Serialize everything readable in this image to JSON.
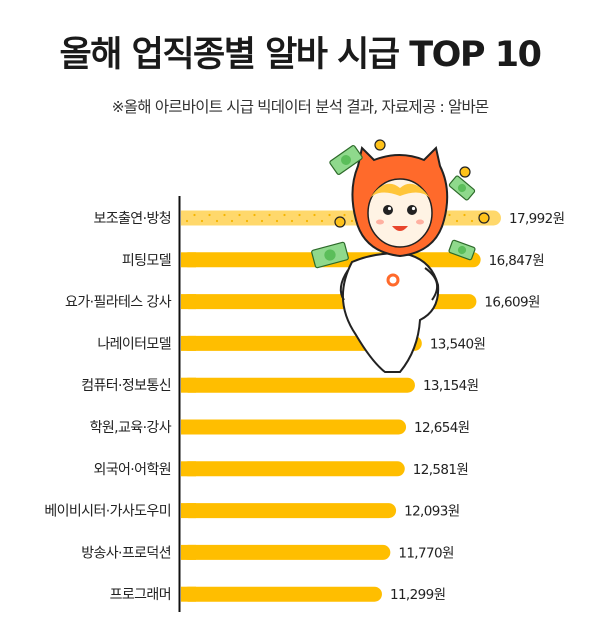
{
  "header": {
    "title": "올해 업직종별 알바 시급 TOP 10",
    "subtitle": "※올해 아르바이트 시급 빅데이터 분석 결과, 자료제공 : 알바몬"
  },
  "colors": {
    "bar": "#FFBE00",
    "top_bar_light": "#FFD86B",
    "mascot_orange": "#FF6A2B",
    "money_green": "#8FD98C"
  },
  "mascot": {
    "icon": "albamon-mascot-holding-money"
  },
  "chart_data": {
    "type": "bar",
    "orientation": "horizontal",
    "title": "올해 업직종별 알바 시급 TOP 10",
    "subtitle": "※올해 아르바이트 시급 빅데이터 분석 결과, 자료제공 : 알바몬",
    "categories": [
      "보조출연·방청",
      "피팅모델",
      "요가·필라테스 강사",
      "나레이터모델",
      "컴퓨터·정보통신",
      "학원,교육·강사",
      "외국어·어학원",
      "베이비시터·가사도우미",
      "방송사·프로덕션",
      "프로그래머"
    ],
    "values": [
      17992,
      16847,
      16609,
      13540,
      13154,
      12654,
      12581,
      12093,
      11770,
      11299
    ],
    "value_labels": [
      "17,992원",
      "16,847원",
      "16,609원",
      "13,540원",
      "13,154원",
      "12,654원",
      "12,581원",
      "12,093원",
      "11,770원",
      "11,299원"
    ],
    "unit": "원",
    "xlim": [
      0,
      17992
    ],
    "grid": false,
    "legend": "none"
  }
}
